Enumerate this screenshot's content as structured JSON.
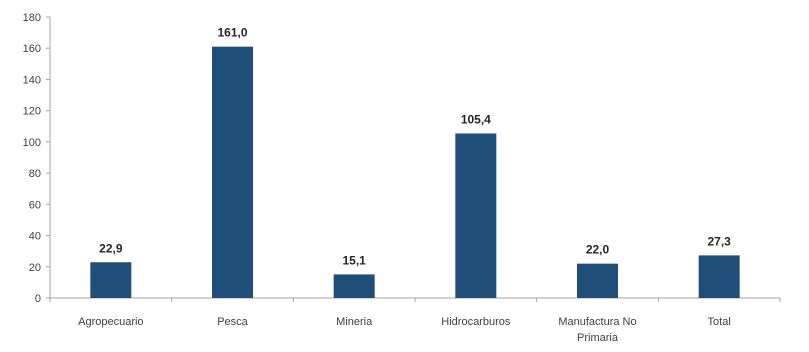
{
  "chart_data": {
    "type": "bar",
    "title": "",
    "xlabel": "",
    "ylabel": "",
    "categories": [
      "Agropecuario",
      "Pesca",
      "Mineria",
      "Hidrocarburos",
      "Manufactura No Primaria",
      "Total"
    ],
    "category_lines": [
      [
        "Agropecuario"
      ],
      [
        "Pesca"
      ],
      [
        "Mineria"
      ],
      [
        "Hidrocarburos"
      ],
      [
        "Manufactura No",
        "Primaria"
      ],
      [
        "Total"
      ]
    ],
    "values": [
      22.9,
      161.0,
      15.1,
      105.4,
      22.0,
      27.3
    ],
    "value_labels": [
      "22,9",
      "161,0",
      "15,1",
      "105,4",
      "22,0",
      "27,3"
    ],
    "ylim": [
      0,
      180
    ],
    "yticks": [
      0,
      20,
      40,
      60,
      80,
      100,
      120,
      140,
      160,
      180
    ],
    "grid": false,
    "legend": "none",
    "bar_color": "#1f4e79",
    "axis_color": "#a6a6a6"
  }
}
